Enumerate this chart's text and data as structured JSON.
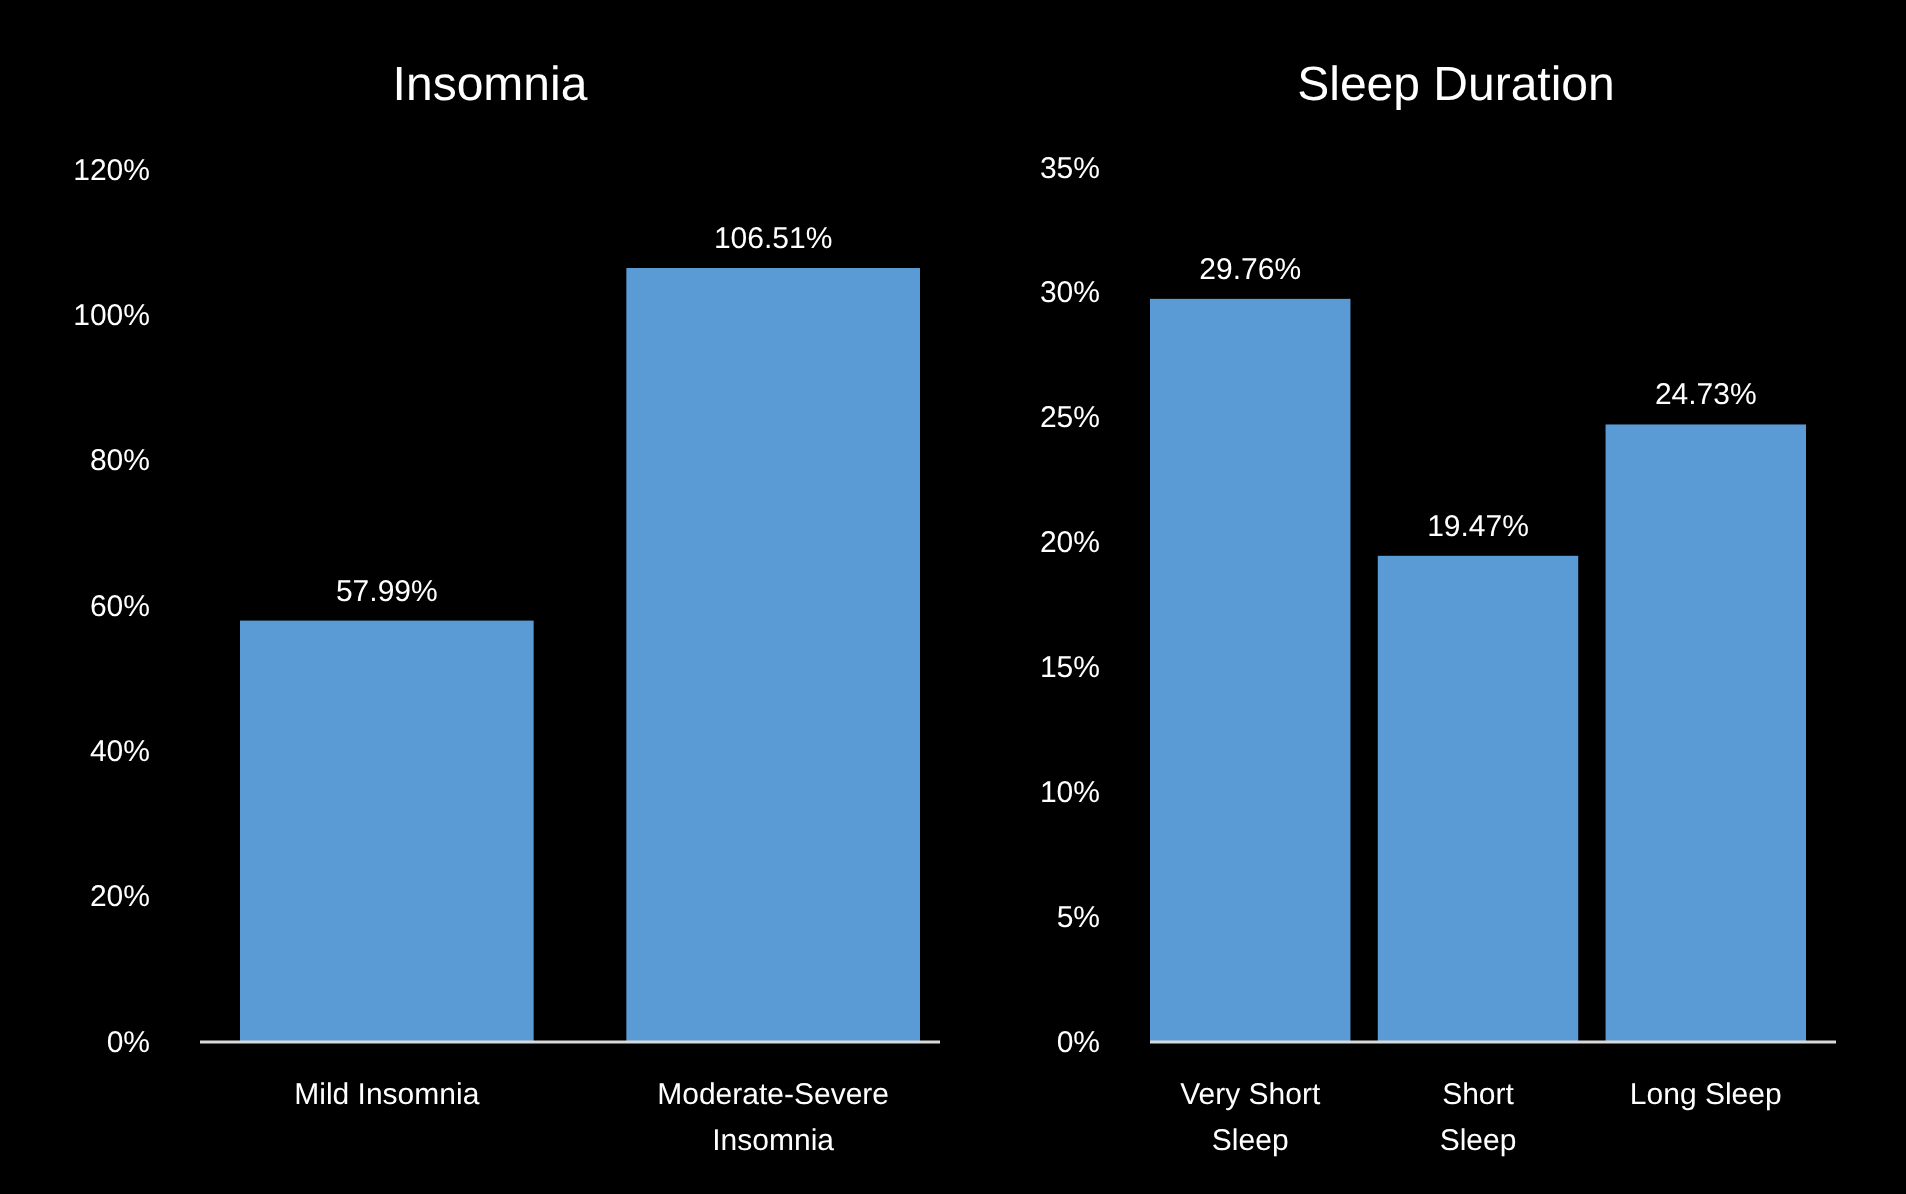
{
  "chart_data": [
    {
      "type": "bar",
      "title": "Insomnia",
      "categories": [
        "Mild Insomnia",
        "Moderate-Severe Insomnia"
      ],
      "values": [
        57.99,
        106.51
      ],
      "value_labels": [
        "57.99%",
        "106.51%"
      ],
      "color": "#5b9bd5",
      "ylim": [
        0,
        120
      ],
      "yticks": [
        {
          "value": 0,
          "label": "0%"
        },
        {
          "value": 20,
          "label": "20%"
        },
        {
          "value": 40,
          "label": "40%"
        },
        {
          "value": 60,
          "label": "60%"
        },
        {
          "value": 80,
          "label": "80%"
        },
        {
          "value": 100,
          "label": "100%"
        },
        {
          "value": 120,
          "label": "120%"
        }
      ],
      "grid": false
    },
    {
      "type": "bar",
      "title": "Sleep Duration",
      "categories": [
        "Very Short Sleep",
        "Short Sleep",
        "Long Sleep"
      ],
      "values": [
        29.76,
        19.47,
        24.73
      ],
      "value_labels": [
        "29.76%",
        "19.47%",
        "24.73%"
      ],
      "color": "#5b9bd5",
      "ylim": [
        0,
        35
      ],
      "yticks": [
        {
          "value": 0,
          "label": "0%"
        },
        {
          "value": 5,
          "label": "5%"
        },
        {
          "value": 10,
          "label": "10%"
        },
        {
          "value": 15,
          "label": "15%"
        },
        {
          "value": 20,
          "label": "20%"
        },
        {
          "value": 25,
          "label": "25%"
        },
        {
          "value": 30,
          "label": "30%"
        },
        {
          "value": 35,
          "label": "35%"
        }
      ],
      "grid": false
    }
  ]
}
